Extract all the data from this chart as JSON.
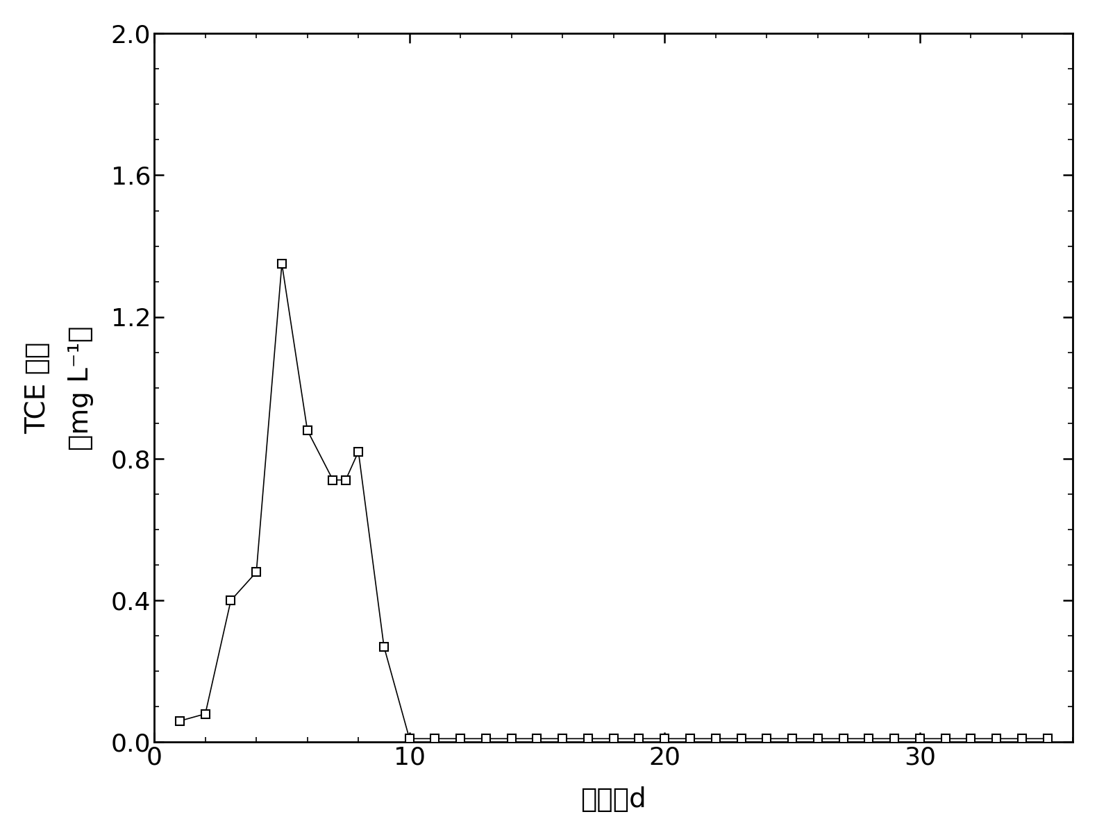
{
  "x": [
    1,
    2,
    3,
    4,
    5,
    6,
    7,
    7.5,
    8,
    9,
    10,
    11,
    12,
    13,
    14,
    15,
    16,
    17,
    18,
    19,
    20,
    21,
    22,
    23,
    24,
    25,
    26,
    27,
    28,
    29,
    30,
    31,
    32,
    33,
    34,
    35
  ],
  "y": [
    0.06,
    0.08,
    0.4,
    0.48,
    1.35,
    0.88,
    0.74,
    0.74,
    0.82,
    0.27,
    0.01,
    0.01,
    0.01,
    0.01,
    0.01,
    0.01,
    0.01,
    0.01,
    0.01,
    0.01,
    0.01,
    0.01,
    0.01,
    0.01,
    0.01,
    0.01,
    0.01,
    0.01,
    0.01,
    0.01,
    0.01,
    0.01,
    0.01,
    0.01,
    0.01,
    0.01
  ],
  "xlabel_cn": "时间，d",
  "ylabel_top": "TCE 浓度",
  "ylabel_bottom": "（mg L⁻¹）",
  "xlim": [
    0,
    36
  ],
  "ylim": [
    0.0,
    2.0
  ],
  "xticks": [
    0,
    10,
    20,
    30
  ],
  "yticks": [
    0.0,
    0.4,
    0.8,
    1.2,
    1.6,
    2.0
  ],
  "ytick_labels": [
    "0.0",
    "0.4",
    "0.8",
    "1.2",
    "1.6",
    "2.0"
  ],
  "line_color": "#000000",
  "marker_facecolor": "#ffffff",
  "marker_edgecolor": "#000000",
  "background_color": "#ffffff",
  "marker_size": 9,
  "marker_edgewidth": 1.5,
  "line_width": 1.2,
  "tick_labelsize": 26,
  "label_fontsize": 28,
  "spine_linewidth": 2.0
}
